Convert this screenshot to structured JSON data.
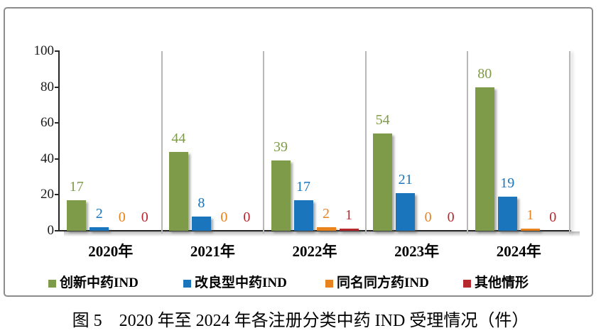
{
  "chart_data": {
    "type": "bar",
    "caption": "图 5　2020 年至 2024 年各注册分类中药 IND 受理情况（件）",
    "categories": [
      "2020年",
      "2021年",
      "2022年",
      "2023年",
      "2024年"
    ],
    "series": [
      {
        "name": "创新中药IND",
        "color": "#7E9B49",
        "values": [
          17,
          44,
          39,
          54,
          80
        ]
      },
      {
        "name": "改良型中药IND",
        "color": "#1B75BC",
        "values": [
          2,
          8,
          17,
          21,
          19
        ]
      },
      {
        "name": "同名同方药IND",
        "color": "#E8821D",
        "values": [
          0,
          0,
          2,
          0,
          1
        ]
      },
      {
        "name": "其他情形",
        "color": "#B5282E",
        "values": [
          0,
          0,
          1,
          0,
          0
        ]
      }
    ],
    "ylim": [
      0,
      100
    ],
    "yticks": [
      0,
      20,
      40,
      60,
      80,
      100
    ],
    "xlabel": "",
    "ylabel": "",
    "legend_position": "bottom",
    "grid": "vertical-category-separators",
    "axis_color": "#262626",
    "separator_color": "#b8b8b8",
    "frame_color": "#8c8c8c"
  }
}
